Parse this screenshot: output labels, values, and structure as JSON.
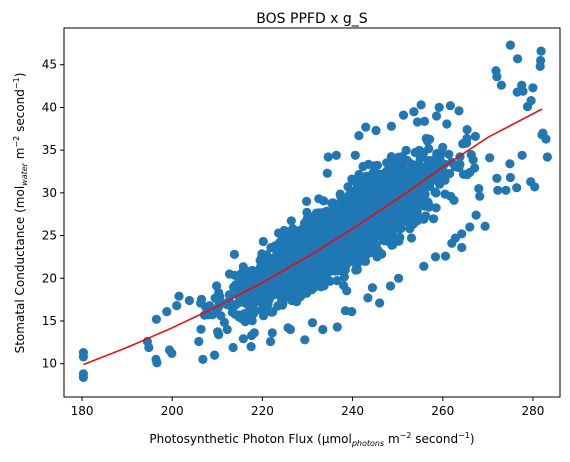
{
  "chart_data": {
    "type": "scatter",
    "title": "BOS PPFD x g_S",
    "xlabel": {
      "pre": "Photosynthetic Photon Flux (µmol",
      "sub": "photons",
      "mid": " m",
      "sup1": "−2",
      "mid2": " second",
      "sup2": "−1",
      "post": ")"
    },
    "ylabel": {
      "pre": "Stomatal Conductance (mol",
      "sub": "water",
      "mid": " m",
      "sup1": "−2",
      "mid2": " second",
      "sup2": "−1",
      "post": ")"
    },
    "xlim": [
      176,
      286
    ],
    "ylim": [
      6.1,
      49.3
    ],
    "xticks": [
      180,
      200,
      220,
      240,
      260,
      280
    ],
    "yticks": [
      10,
      15,
      20,
      25,
      30,
      35,
      40,
      45
    ],
    "scatter_color": "#1f77b4",
    "fit_color": "#ff0000",
    "cloud": {
      "x_range": [
        194,
        282
      ],
      "centerline": [
        [
          195,
          13.5
        ],
        [
          210,
          16.5
        ],
        [
          220,
          19.5
        ],
        [
          230,
          22.5
        ],
        [
          240,
          26.0
        ],
        [
          250,
          29.5
        ],
        [
          260,
          32.5
        ],
        [
          270,
          35.5
        ],
        [
          280,
          38.5
        ]
      ],
      "spread": 5.5,
      "count": 3000
    },
    "outliers": [
      [
        180.3,
        11.3
      ],
      [
        180.3,
        10.8
      ],
      [
        180.3,
        8.8
      ],
      [
        180.3,
        8.4
      ],
      [
        194.5,
        12.6
      ],
      [
        194.8,
        11.9
      ],
      [
        196.4,
        10.5
      ],
      [
        196.6,
        10.1
      ],
      [
        275,
        47.3
      ],
      [
        281.8,
        46.6
      ],
      [
        281.7,
        45.5
      ],
      [
        281.6,
        44.8
      ],
      [
        271.8,
        44.3
      ],
      [
        277.8,
        41.9
      ],
      [
        277.5,
        42.6
      ],
      [
        273,
        42.6
      ],
      [
        276.6,
        45.7
      ],
      [
        272,
        43.6
      ],
      [
        279.6,
        40.8
      ],
      [
        280,
        42.3
      ],
      [
        278.8,
        40.1
      ],
      [
        276.5,
        41.8
      ],
      [
        282,
        36.8
      ],
      [
        282.2,
        37.0
      ],
      [
        283.2,
        34.2
      ],
      [
        282.9,
        36.3
      ],
      [
        279.5,
        31.3
      ],
      [
        280.4,
        30.7
      ],
      [
        276.4,
        30.6
      ],
      [
        274,
        30.3
      ],
      [
        275,
        31.8
      ],
      [
        270.4,
        34.1
      ],
      [
        272,
        31.7
      ],
      [
        268,
        30.5
      ],
      [
        268.2,
        29.6
      ],
      [
        266,
        26.0
      ],
      [
        262.8,
        24.7
      ],
      [
        264.2,
        23.6
      ],
      [
        255.8,
        21.4
      ],
      [
        250.2,
        20.0
      ],
      [
        248.4,
        19.1
      ],
      [
        246,
        17.1
      ],
      [
        239.8,
        16.1
      ],
      [
        236.6,
        14.3
      ],
      [
        233.4,
        14.0
      ],
      [
        229.4,
        12.8
      ],
      [
        225.7,
        14.2
      ],
      [
        221.8,
        12.6
      ],
      [
        217.6,
        13.3
      ],
      [
        217.5,
        12.0
      ],
      [
        213.5,
        11.9
      ],
      [
        209.4,
        11.0
      ],
      [
        206.8,
        10.5
      ],
      [
        205.9,
        12.6
      ],
      [
        199.4,
        11.6
      ],
      [
        199.9,
        11.2
      ],
      [
        213.8,
        22.8
      ],
      [
        215.4,
        20.6
      ],
      [
        212.7,
        20.5
      ],
      [
        210.3,
        18.3
      ],
      [
        206.3,
        17.1
      ],
      [
        201.5,
        17.9
      ],
      [
        201,
        16.8
      ],
      [
        198.8,
        16.1
      ],
      [
        196.5,
        15.2
      ],
      [
        203.8,
        17.4
      ],
      [
        220.2,
        24.3
      ],
      [
        223.6,
        25.3
      ],
      [
        226.2,
        25.4
      ],
      [
        229.8,
        29.0
      ],
      [
        232.5,
        29.3
      ],
      [
        234.4,
        32.3
      ],
      [
        236.4,
        34.4
      ],
      [
        240.6,
        34.4
      ],
      [
        241.4,
        36.7
      ],
      [
        242.9,
        37.7
      ],
      [
        245.2,
        37.3
      ],
      [
        248.6,
        37.8
      ],
      [
        251.3,
        39.1
      ],
      [
        253.6,
        39.5
      ],
      [
        255.2,
        40.3
      ],
      [
        258.6,
        39.0
      ],
      [
        259.2,
        40.0
      ],
      [
        261.7,
        40.2
      ],
      [
        263.6,
        39.6
      ],
      [
        265.4,
        37.4
      ],
      [
        254.4,
        38.3
      ],
      [
        234.6,
        34.2
      ],
      [
        227.1,
        23.7
      ],
      [
        225.4,
        20.9
      ],
      [
        221.8,
        21.4
      ],
      [
        258.4,
        22.5
      ],
      [
        262,
        24.1
      ],
      [
        260.6,
        22.6
      ],
      [
        264.2,
        25.2
      ],
      [
        267.4,
        27.4
      ],
      [
        272.2,
        30.3
      ],
      [
        274.9,
        33.4
      ],
      [
        277.6,
        34.4
      ],
      [
        269.4,
        26.1
      ],
      [
        244.4,
        18.9
      ],
      [
        243.4,
        17.7
      ],
      [
        238.4,
        16.2
      ],
      [
        231.1,
        14.8
      ],
      [
        226.2,
        14.0
      ],
      [
        222.2,
        13.6
      ],
      [
        218.2,
        13.6
      ],
      [
        212.2,
        14.0
      ],
      [
        210.3,
        13.4
      ]
    ],
    "fit": {
      "x_start": 180.3,
      "x_end": 282,
      "points": [
        [
          180.3,
          9.9
        ],
        [
          190,
          11.9
        ],
        [
          200,
          14.2
        ],
        [
          210,
          16.7
        ],
        [
          220,
          19.5
        ],
        [
          230,
          22.5
        ],
        [
          240,
          25.8
        ],
        [
          250,
          29.3
        ],
        [
          260,
          33.0
        ],
        [
          270,
          36.5
        ],
        [
          282,
          39.8
        ]
      ]
    }
  }
}
